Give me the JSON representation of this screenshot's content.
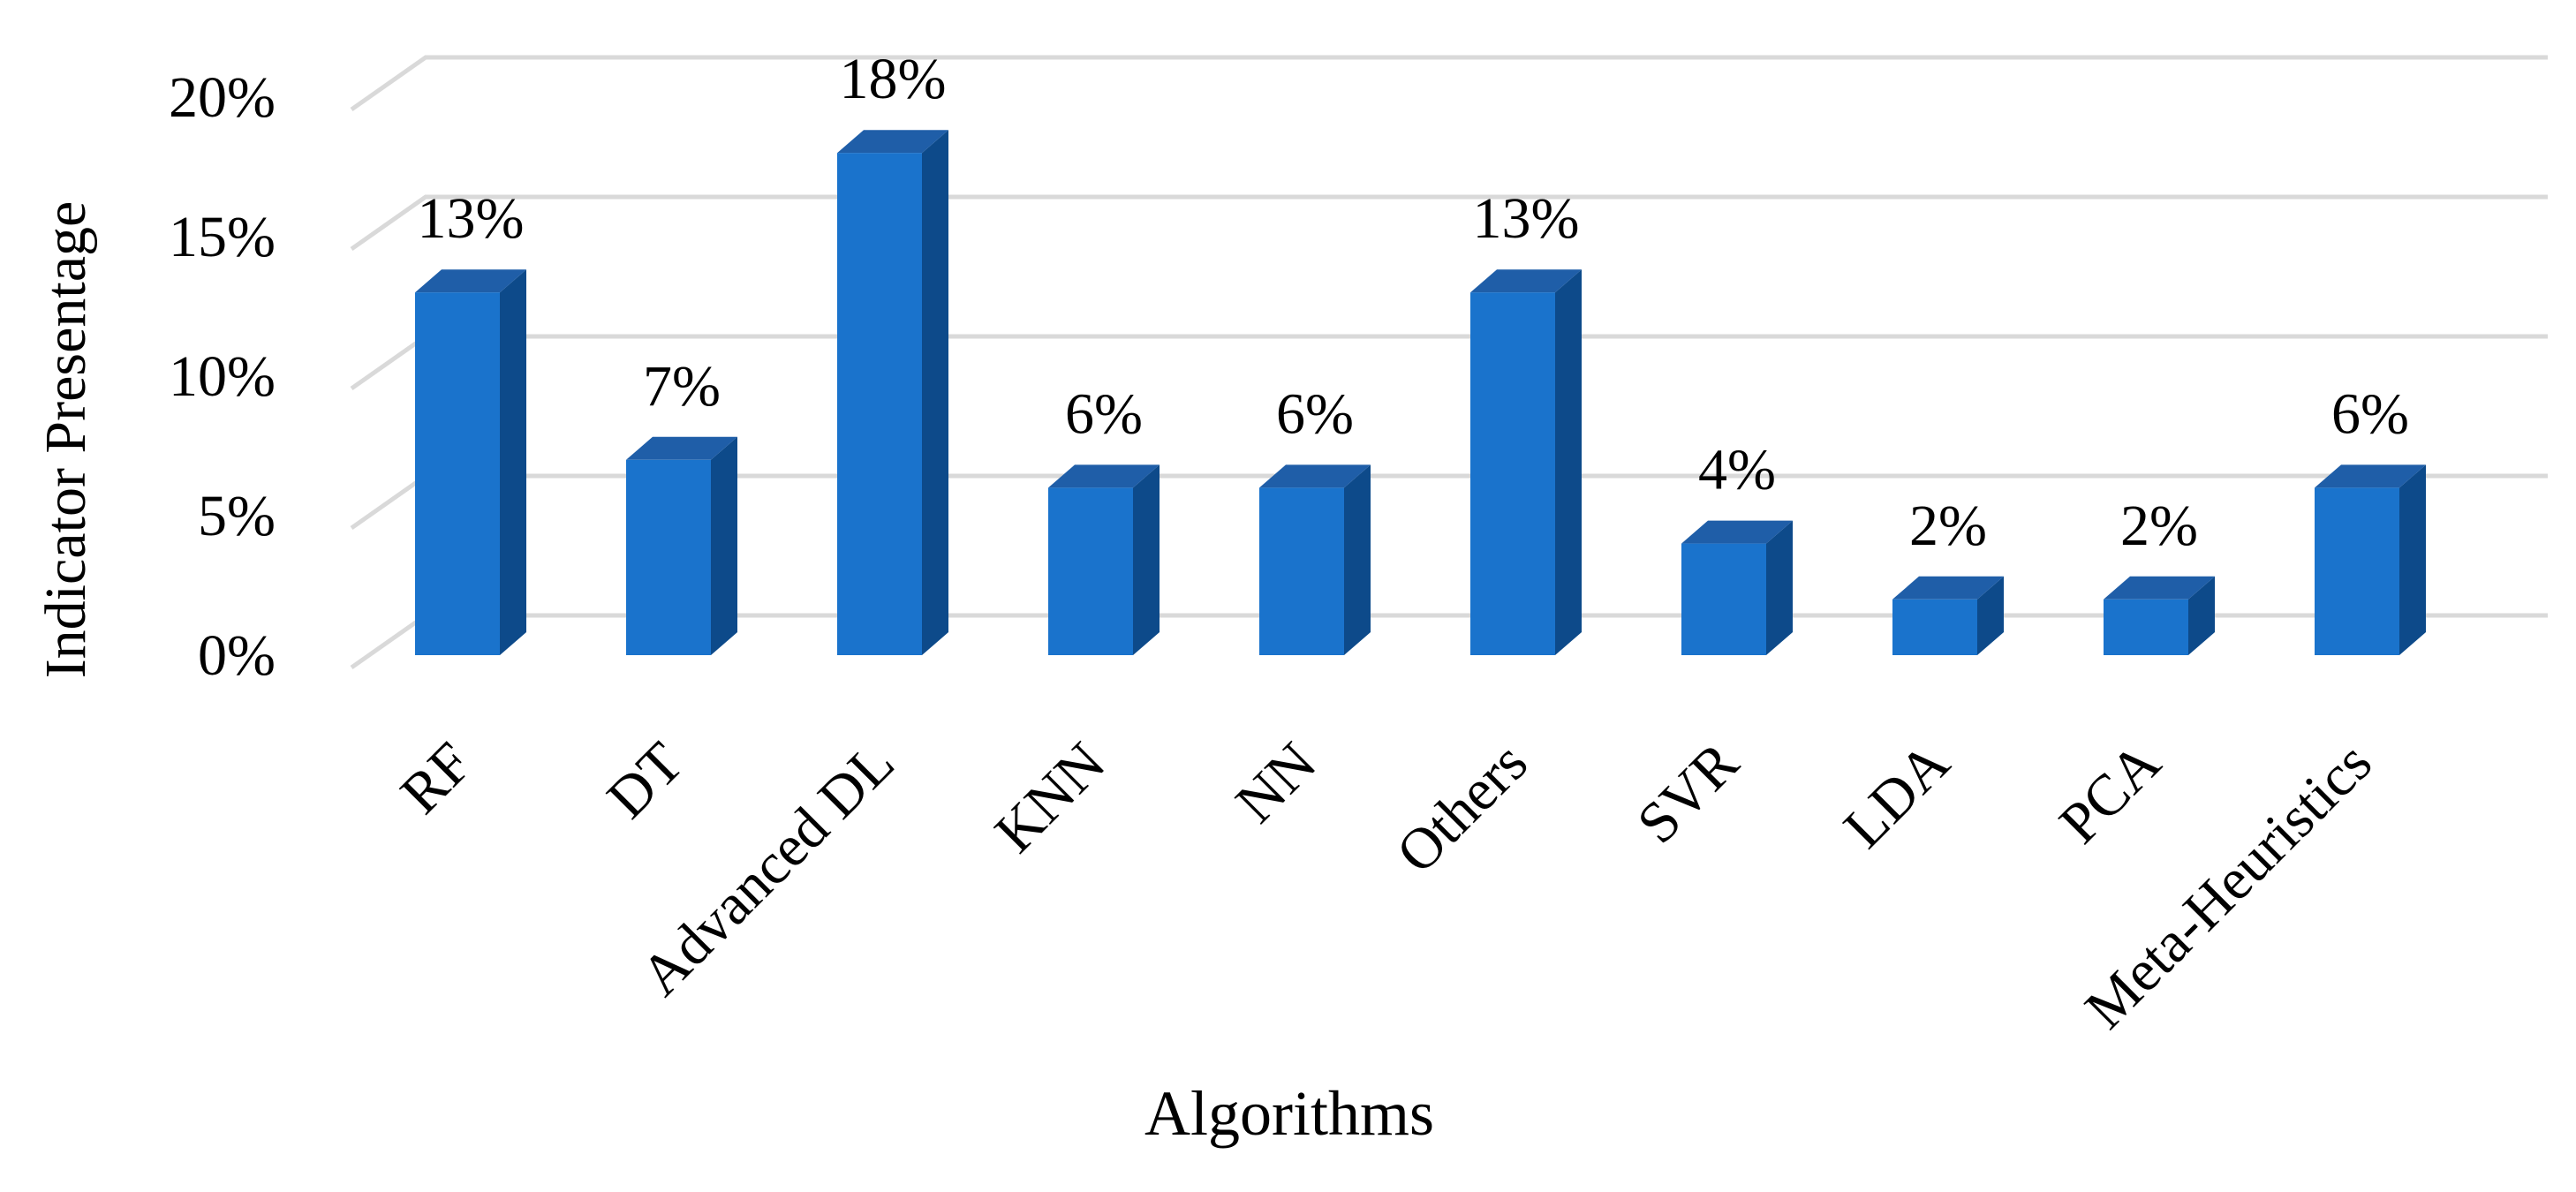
{
  "chart_data": {
    "type": "bar",
    "style": "3d-column",
    "title": "",
    "xlabel": "Algorithms",
    "ylabel": "Indicator Presentage",
    "categories": [
      "RF",
      "DT",
      "Advanced DL",
      "KNN",
      "NN",
      "Others",
      "SVR",
      "LDA",
      "PCA",
      "Meta-Heuristics"
    ],
    "values": [
      13,
      7,
      18,
      6,
      6,
      13,
      4,
      2,
      2,
      6
    ],
    "data_labels": [
      "13%",
      "7%",
      "18%",
      "6%",
      "6%",
      "13%",
      "4%",
      "2%",
      "2%",
      "6%"
    ],
    "yticks": [
      0,
      5,
      10,
      15,
      20
    ],
    "ytick_labels": [
      "0%",
      "5%",
      "10%",
      "15%",
      "20%"
    ],
    "ylim": [
      0,
      20
    ],
    "grid": true,
    "legend": "none",
    "colors": {
      "bar_front": "#1A73CC",
      "bar_top": "#1F5EA8",
      "bar_side": "#0D4A8A",
      "grid": "#D9D9D9"
    }
  }
}
